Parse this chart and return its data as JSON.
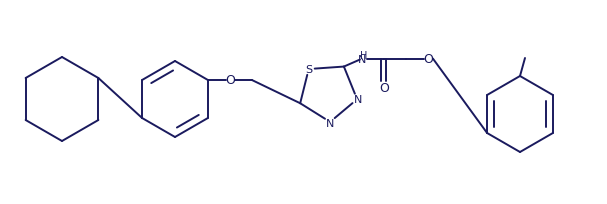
{
  "figsize": [
    6.07,
    2.05
  ],
  "dpi": 100,
  "bg_color": "#ffffff",
  "line_color": "#1a1a5e",
  "lw": 1.4,
  "xlim": [
    0,
    607
  ],
  "ylim": [
    0,
    205
  ]
}
